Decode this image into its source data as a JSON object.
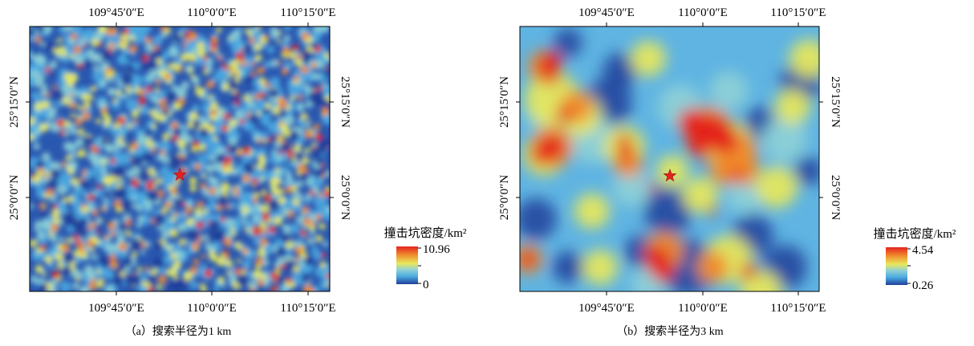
{
  "colors": {
    "low": "#1f3f9a",
    "mid_low": "#4aa8e0",
    "mid": "#8fd1d6",
    "mid_high": "#e8e85a",
    "high": "#f08a2c",
    "peak": "#e4231f",
    "star": "#e4231f"
  },
  "panels": [
    {
      "id": "a",
      "top_ticks": [
        "109°45′0″E",
        "110°0′0″E",
        "110°15′0″E"
      ],
      "bottom_ticks": [
        "109°45′0″E",
        "110°0′0″E",
        "110°15′0″E"
      ],
      "left_ticks": [
        "25°15′0″N",
        "25°0′0″N"
      ],
      "right_ticks": [
        "25°15′0″N",
        "25°0′0″N"
      ],
      "legend_title": "撞击坑密度/km²",
      "legend_max": "10.96",
      "legend_min": "0",
      "caption": "（a）搜索半径为1 km",
      "marker_icon": "star-icon"
    },
    {
      "id": "b",
      "top_ticks": [
        "109°45′0″E",
        "110°0′0″E",
        "110°15′0″E"
      ],
      "bottom_ticks": [
        "109°45′0″E",
        "110°0′0″E",
        "110°15′0″E"
      ],
      "left_ticks": [
        "25°15′0″N",
        "25°0′0″N"
      ],
      "right_ticks": [
        "25°15′0″N",
        "25°0′0″N"
      ],
      "legend_title": "撞击坑密度/km²",
      "legend_max": "4.54",
      "legend_min": "0.26",
      "caption": "（b）搜索半径为3 km",
      "marker_icon": "star-icon"
    }
  ]
}
